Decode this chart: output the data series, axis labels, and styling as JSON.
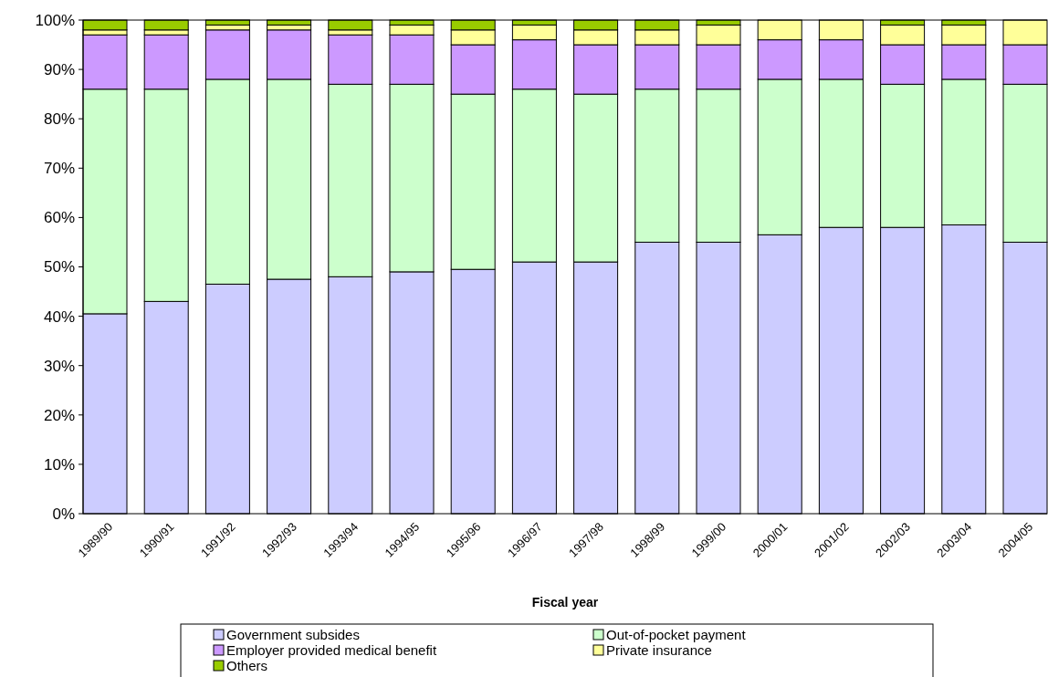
{
  "chart_data": {
    "type": "bar",
    "stacked": true,
    "xlabel": "Fiscal year",
    "categories": [
      "1989/90",
      "1990/91",
      "1991/92",
      "1992/93",
      "1993/94",
      "1994/95",
      "1995/96",
      "1996/97",
      "1997/98",
      "1998/99",
      "1999/00",
      "2000/01",
      "2001/02",
      "2002/03",
      "2003/04",
      "2004/05"
    ],
    "series": [
      {
        "name": "Government subsides",
        "color": "#ccccff",
        "values": [
          40.5,
          43,
          46.5,
          47.5,
          48,
          49,
          49.5,
          51,
          51,
          55,
          55,
          56.5,
          58,
          58,
          58.5,
          55
        ]
      },
      {
        "name": "Out-of-pocket payment",
        "color": "#ccffcc",
        "values": [
          45.5,
          43,
          41.5,
          40.5,
          39,
          38,
          35.5,
          35,
          34,
          31,
          31,
          31.5,
          30,
          29,
          29.5,
          32
        ]
      },
      {
        "name": "Employer provided medical benefit",
        "color": "#cc99ff",
        "values": [
          11,
          11,
          10,
          10,
          10,
          10,
          10,
          10,
          10,
          9,
          9,
          8,
          8,
          8,
          7,
          8
        ]
      },
      {
        "name": "Private insurance",
        "color": "#ffff99",
        "values": [
          1,
          1,
          1,
          1,
          1,
          2,
          3,
          3,
          3,
          3,
          4,
          4,
          4,
          4,
          4,
          5
        ]
      },
      {
        "name": "Others",
        "color": "#99cc00",
        "values": [
          2,
          2,
          1,
          1,
          2,
          1,
          2,
          1,
          2,
          2,
          1,
          0,
          0,
          1,
          1,
          0
        ]
      }
    ],
    "ylim": [
      0,
      100
    ],
    "yticks": [
      {
        "value": 0,
        "label": "0%"
      },
      {
        "value": 10,
        "label": "10%"
      },
      {
        "value": 20,
        "label": "20%"
      },
      {
        "value": 30,
        "label": "30%"
      },
      {
        "value": 40,
        "label": "40%"
      },
      {
        "value": 50,
        "label": "50%"
      },
      {
        "value": 60,
        "label": "60%"
      },
      {
        "value": 70,
        "label": "70%"
      },
      {
        "value": 80,
        "label": "80%"
      },
      {
        "value": 90,
        "label": "90%"
      },
      {
        "value": 100,
        "label": "100%"
      }
    ],
    "grid": false,
    "legend": "bottom"
  }
}
